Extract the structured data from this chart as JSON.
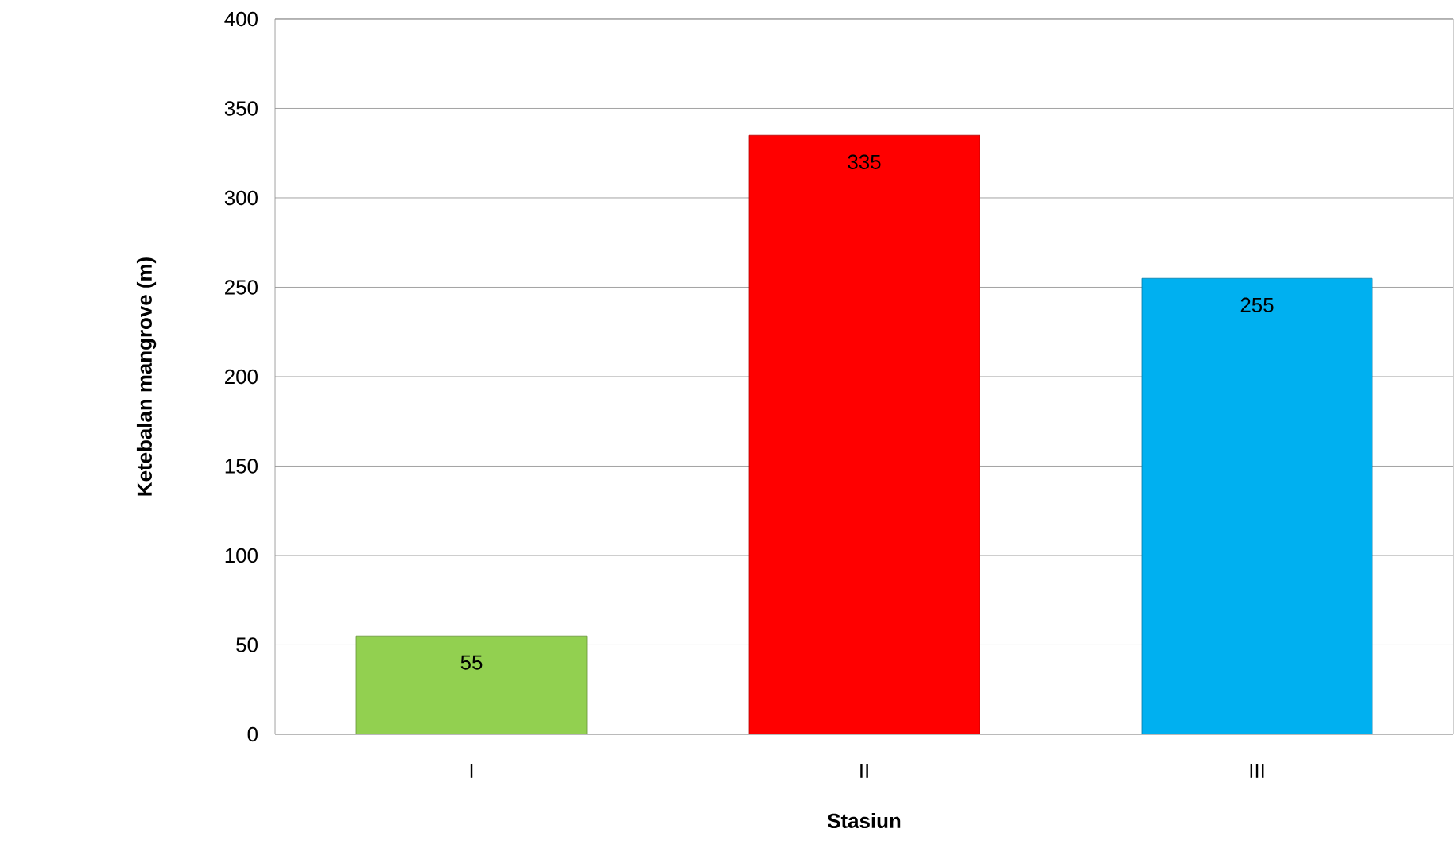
{
  "chart_data": {
    "type": "bar",
    "xlabel": "Stasiun",
    "ylabel": "Ketebalan mangrove (m)",
    "categories": [
      "I",
      "II",
      "III"
    ],
    "values": [
      55,
      335,
      255
    ],
    "colors": [
      "#92d050",
      "#ff0000",
      "#00b0f0"
    ],
    "ylim": [
      0,
      400
    ],
    "yticks": [
      0,
      50,
      100,
      150,
      200,
      250,
      300,
      350,
      400
    ],
    "grid": "y",
    "data_labels": true
  }
}
